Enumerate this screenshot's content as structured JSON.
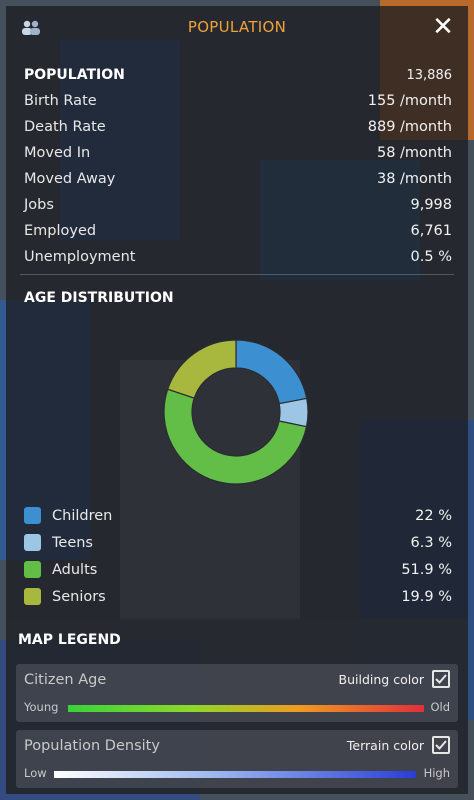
{
  "header": {
    "title": "POPULATION",
    "icon": "citizens-icon",
    "close_icon": "close-icon"
  },
  "stats": {
    "rows": [
      {
        "label": "POPULATION",
        "value": "13,886"
      },
      {
        "label": "Birth Rate",
        "value": "155 /month"
      },
      {
        "label": "Death Rate",
        "value": "889 /month"
      },
      {
        "label": "Moved In",
        "value": "58 /month"
      },
      {
        "label": "Moved Away",
        "value": "38 /month"
      },
      {
        "label": "Jobs",
        "value": "9,998"
      },
      {
        "label": "Employed",
        "value": "6,761"
      },
      {
        "label": "Unemployment",
        "value": "0.5 %"
      }
    ]
  },
  "age_distribution": {
    "title": "AGE DISTRIBUTION",
    "groups": [
      {
        "label": "Children",
        "value": "22 %",
        "percent": 22,
        "color": "#3c8fd0"
      },
      {
        "label": "Teens",
        "value": "6.3 %",
        "percent": 6.3,
        "color": "#9cc6e4"
      },
      {
        "label": "Adults",
        "value": "51.9 %",
        "percent": 51.9,
        "color": "#62be46"
      },
      {
        "label": "Seniors",
        "value": "19.9 %",
        "percent": 19.9,
        "color": "#a8b83e"
      }
    ]
  },
  "map_legend": {
    "title": "MAP LEGEND",
    "citizen_age": {
      "title": "Citizen Age",
      "option_label": "Building color",
      "checked": true,
      "low_label": "Young",
      "high_label": "Old"
    },
    "population_density": {
      "title": "Population Density",
      "option_label": "Terrain color",
      "checked": true,
      "low_label": "Low",
      "high_label": "High"
    }
  },
  "colors": {
    "accent": "#f0a23a",
    "panel": "#1c1e22"
  }
}
